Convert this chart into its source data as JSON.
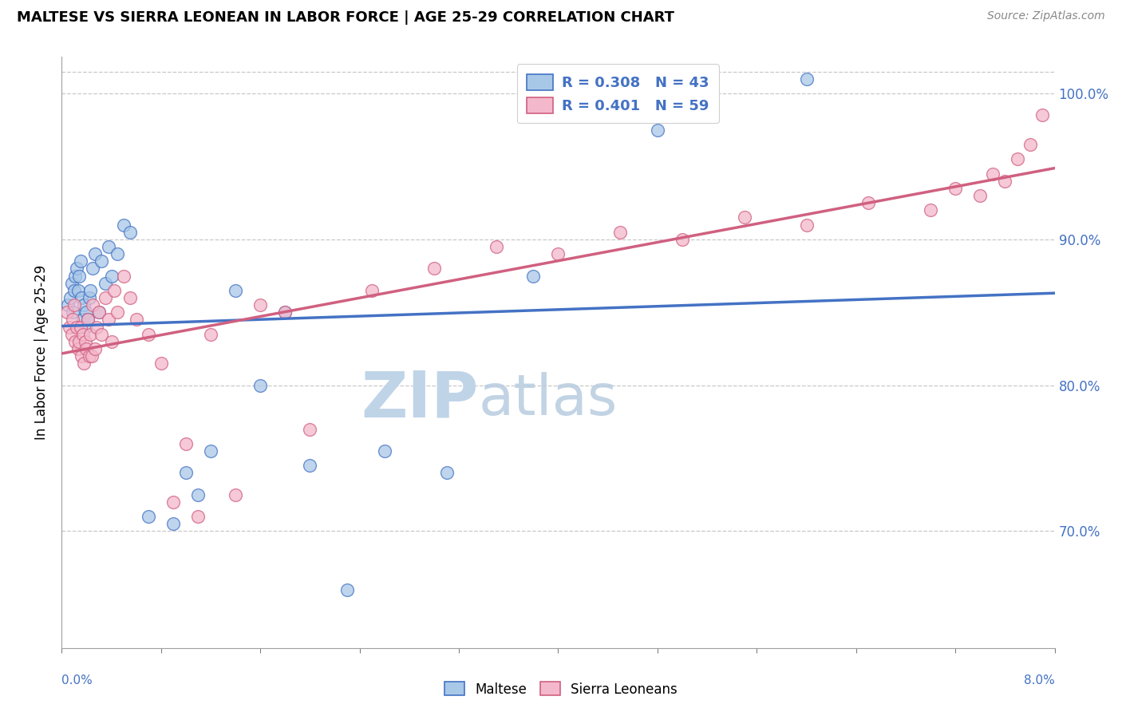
{
  "title": "MALTESE VS SIERRA LEONEAN IN LABOR FORCE | AGE 25-29 CORRELATION CHART",
  "source_text": "Source: ZipAtlas.com",
  "ylabel": "In Labor Force | Age 25-29",
  "xmin": 0.0,
  "xmax": 8.0,
  "ymin": 62.0,
  "ymax": 102.5,
  "yticks": [
    70.0,
    80.0,
    90.0,
    100.0
  ],
  "right_ytick_color": "#4472c4",
  "legend_r_maltese": "R = 0.308",
  "legend_n_maltese": "N = 43",
  "legend_r_sierra": "R = 0.401",
  "legend_n_sierra": "N = 59",
  "maltese_color": "#a8c8e8",
  "sierra_color": "#f4b8cc",
  "maltese_edge_color": "#4472c4",
  "sierra_edge_color": "#d06080",
  "maltese_line_color": "#4472c4",
  "sierra_line_color": "#d06080",
  "legend_r_text_color": "#4472c4",
  "watermark_zip_color": "#c0d4e8",
  "watermark_atlas_color": "#b8cce0",
  "maltese_x": [
    0.05,
    0.07,
    0.08,
    0.09,
    0.1,
    0.11,
    0.12,
    0.13,
    0.14,
    0.15,
    0.16,
    0.17,
    0.18,
    0.19,
    0.2,
    0.21,
    0.22,
    0.23,
    0.25,
    0.27,
    0.3,
    0.32,
    0.35,
    0.38,
    0.4,
    0.45,
    0.5,
    0.55,
    0.7,
    0.9,
    1.0,
    1.1,
    1.2,
    1.4,
    1.6,
    1.8,
    2.0,
    2.3,
    2.6,
    3.1,
    3.8,
    4.8,
    6.0
  ],
  "maltese_y": [
    85.5,
    86.0,
    87.0,
    85.0,
    86.5,
    87.5,
    88.0,
    86.5,
    87.5,
    88.5,
    86.0,
    84.5,
    85.5,
    84.0,
    85.0,
    84.5,
    86.0,
    86.5,
    88.0,
    89.0,
    85.0,
    88.5,
    87.0,
    89.5,
    87.5,
    89.0,
    91.0,
    90.5,
    71.0,
    70.5,
    74.0,
    72.5,
    75.5,
    86.5,
    80.0,
    85.0,
    74.5,
    66.0,
    75.5,
    74.0,
    87.5,
    97.5,
    101.0
  ],
  "sierra_x": [
    0.04,
    0.06,
    0.08,
    0.09,
    0.1,
    0.11,
    0.12,
    0.13,
    0.14,
    0.15,
    0.16,
    0.17,
    0.18,
    0.19,
    0.2,
    0.21,
    0.22,
    0.23,
    0.24,
    0.25,
    0.27,
    0.28,
    0.3,
    0.32,
    0.35,
    0.38,
    0.4,
    0.42,
    0.45,
    0.5,
    0.55,
    0.6,
    0.7,
    0.8,
    0.9,
    1.0,
    1.1,
    1.2,
    1.4,
    1.6,
    1.8,
    2.0,
    2.5,
    3.0,
    3.5,
    4.0,
    4.5,
    5.0,
    5.5,
    6.0,
    6.5,
    7.0,
    7.2,
    7.4,
    7.5,
    7.6,
    7.7,
    7.8,
    7.9
  ],
  "sierra_y": [
    85.0,
    84.0,
    83.5,
    84.5,
    85.5,
    83.0,
    84.0,
    82.5,
    83.0,
    84.0,
    82.0,
    83.5,
    81.5,
    83.0,
    82.5,
    84.5,
    82.0,
    83.5,
    82.0,
    85.5,
    82.5,
    84.0,
    85.0,
    83.5,
    86.0,
    84.5,
    83.0,
    86.5,
    85.0,
    87.5,
    86.0,
    84.5,
    83.5,
    81.5,
    72.0,
    76.0,
    71.0,
    83.5,
    72.5,
    85.5,
    85.0,
    77.0,
    86.5,
    88.0,
    89.5,
    89.0,
    90.5,
    90.0,
    91.5,
    91.0,
    92.5,
    92.0,
    93.5,
    93.0,
    94.5,
    94.0,
    95.5,
    96.5,
    98.5
  ]
}
